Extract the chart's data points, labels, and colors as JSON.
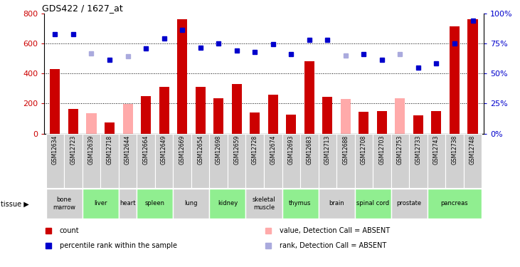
{
  "title": "GDS422 / 1627_at",
  "samples": [
    "GSM12634",
    "GSM12723",
    "GSM12639",
    "GSM12718",
    "GSM12644",
    "GSM12664",
    "GSM12649",
    "GSM12669",
    "GSM12654",
    "GSM12698",
    "GSM12659",
    "GSM12728",
    "GSM12674",
    "GSM12693",
    "GSM12683",
    "GSM12713",
    "GSM12688",
    "GSM12708",
    "GSM12703",
    "GSM12753",
    "GSM12733",
    "GSM12743",
    "GSM12738",
    "GSM12748"
  ],
  "tissues": [
    {
      "name": "bone\nmarrow",
      "start": 0,
      "end": 2,
      "color": "#d0d0d0"
    },
    {
      "name": "liver",
      "start": 2,
      "end": 4,
      "color": "#90ee90"
    },
    {
      "name": "heart",
      "start": 4,
      "end": 5,
      "color": "#d0d0d0"
    },
    {
      "name": "spleen",
      "start": 5,
      "end": 7,
      "color": "#90ee90"
    },
    {
      "name": "lung",
      "start": 7,
      "end": 9,
      "color": "#d0d0d0"
    },
    {
      "name": "kidney",
      "start": 9,
      "end": 11,
      "color": "#90ee90"
    },
    {
      "name": "skeletal\nmuscle",
      "start": 11,
      "end": 13,
      "color": "#d0d0d0"
    },
    {
      "name": "thymus",
      "start": 13,
      "end": 15,
      "color": "#90ee90"
    },
    {
      "name": "brain",
      "start": 15,
      "end": 17,
      "color": "#d0d0d0"
    },
    {
      "name": "spinal cord",
      "start": 17,
      "end": 19,
      "color": "#90ee90"
    },
    {
      "name": "prostate",
      "start": 19,
      "end": 21,
      "color": "#d0d0d0"
    },
    {
      "name": "pancreas",
      "start": 21,
      "end": 24,
      "color": "#90ee90"
    }
  ],
  "bar_values": [
    430,
    165,
    135,
    75,
    195,
    250,
    310,
    760,
    310,
    235,
    330,
    140,
    260,
    125,
    480,
    245,
    230,
    145,
    150,
    235,
    120,
    150,
    715,
    760
  ],
  "bar_absent": [
    false,
    false,
    true,
    false,
    true,
    false,
    false,
    false,
    false,
    false,
    false,
    false,
    false,
    false,
    false,
    false,
    true,
    false,
    false,
    true,
    false,
    false,
    false,
    false
  ],
  "rank_values": [
    660,
    660,
    535,
    490,
    515,
    565,
    635,
    690,
    570,
    600,
    550,
    545,
    595,
    530,
    625,
    625,
    520,
    530,
    490,
    530,
    440,
    465,
    600,
    750
  ],
  "rank_absent": [
    false,
    false,
    true,
    false,
    true,
    false,
    false,
    false,
    false,
    false,
    false,
    false,
    false,
    false,
    false,
    false,
    true,
    false,
    false,
    true,
    false,
    false,
    false,
    false
  ],
  "ylim": [
    0,
    800
  ],
  "yticks": [
    0,
    200,
    400,
    600,
    800
  ],
  "y2labels": [
    "0%",
    "25%",
    "50%",
    "75%",
    "100%"
  ],
  "y2values": [
    0,
    200,
    400,
    600,
    800
  ],
  "bar_color_present": "#cc0000",
  "bar_color_absent": "#ffaaaa",
  "rank_color_present": "#0000cc",
  "rank_color_absent": "#aaaadd",
  "tick_box_color": "#d0d0d0",
  "background_color": "#ffffff",
  "legend_items": [
    {
      "color": "#cc0000",
      "marker": "s",
      "label": "count"
    },
    {
      "color": "#0000cc",
      "marker": "s",
      "label": "percentile rank within the sample"
    },
    {
      "color": "#ffaaaa",
      "marker": "s",
      "label": "value, Detection Call = ABSENT"
    },
    {
      "color": "#aaaadd",
      "marker": "s",
      "label": "rank, Detection Call = ABSENT"
    }
  ]
}
